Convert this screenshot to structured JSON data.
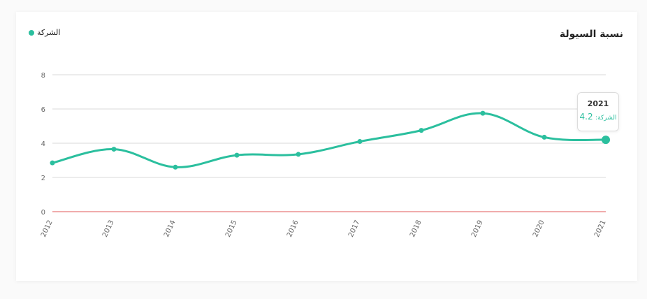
{
  "title": "نسبة السيولة",
  "legend": {
    "label": "الشركة",
    "color": "#2bbf9e"
  },
  "colors": {
    "line": "#2bbf9e",
    "zero_line": "#e05a5a",
    "grid": "#d9d9d9"
  },
  "tooltip": {
    "year": "2021",
    "label": "الشركة:",
    "value": "4.2"
  },
  "chart_data": {
    "type": "line",
    "categories": [
      "2012",
      "2013",
      "2014",
      "2015",
      "2016",
      "2017",
      "2018",
      "2019",
      "2020",
      "2021"
    ],
    "series": [
      {
        "name": "الشركة",
        "values": [
          2.85,
          3.65,
          2.6,
          3.3,
          3.35,
          4.1,
          4.75,
          5.75,
          4.35,
          4.2
        ]
      }
    ],
    "yticks": [
      0,
      2,
      4,
      6,
      8
    ],
    "ylim": [
      0,
      8
    ],
    "grid": true,
    "legend_position": "top-left",
    "highlighted_index": 9
  }
}
